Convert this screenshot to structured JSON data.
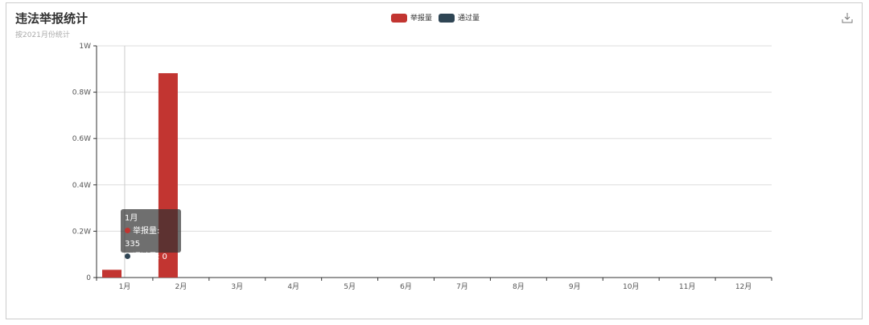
{
  "header": {
    "title": "违法举报统计",
    "subtitle": "按2021月份统计"
  },
  "toolbox": {
    "download_icon": "download-icon"
  },
  "tooltip": {
    "category": "1月",
    "rows": [
      {
        "label": "举报量: 335",
        "color": "#c23531"
      },
      {
        "label": "通过量: 0",
        "color": "#2f4554"
      }
    ]
  },
  "chart_data": {
    "type": "bar",
    "categories": [
      "1月",
      "2月",
      "3月",
      "4月",
      "5月",
      "6月",
      "7月",
      "8月",
      "9月",
      "10月",
      "11月",
      "12月"
    ],
    "series": [
      {
        "name": "举报量",
        "color": "#c23531",
        "values": [
          335,
          8820,
          0,
          0,
          0,
          0,
          0,
          0,
          0,
          0,
          0,
          0
        ]
      },
      {
        "name": "通过量",
        "color": "#2f4554",
        "values": [
          0,
          0,
          0,
          0,
          0,
          0,
          0,
          0,
          0,
          0,
          0,
          0
        ]
      }
    ],
    "ylim": [
      0,
      10000
    ],
    "yticks": [
      0,
      2000,
      4000,
      6000,
      8000,
      10000
    ],
    "ytick_labels": [
      "0",
      "0.2W",
      "0.4W",
      "0.6W",
      "0.8W",
      "1W"
    ],
    "grid": true,
    "legend": "top-center"
  }
}
